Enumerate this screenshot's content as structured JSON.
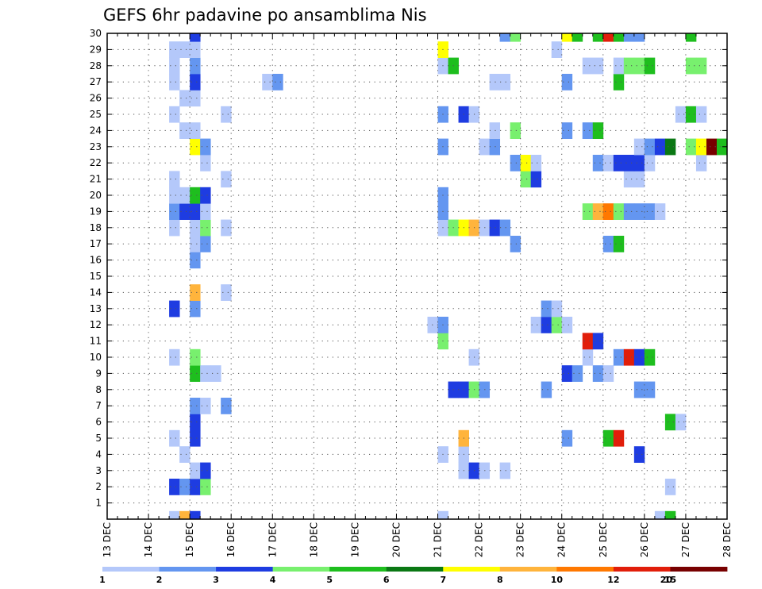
{
  "chart_data": {
    "type": "heatmap",
    "title": "GEFS 6hr padavine po ansamblima Nis",
    "x": {
      "labels": [
        "13 DEC",
        "14 DEC",
        "15 DEC",
        "16 DEC",
        "17 DEC",
        "18 DEC",
        "19 DEC",
        "20 DEC",
        "21 DEC",
        "22 DEC",
        "23 DEC",
        "24 DEC",
        "25 DEC",
        "26 DEC",
        "27 DEC",
        "28 DEC"
      ],
      "range": [
        0,
        60
      ],
      "steps_per_day": 4
    },
    "y": {
      "labels": [
        "1",
        "2",
        "3",
        "4",
        "5",
        "6",
        "7",
        "8",
        "9",
        "10",
        "11",
        "12",
        "13",
        "14",
        "15",
        "16",
        "17",
        "18",
        "19",
        "20",
        "21",
        "22",
        "23",
        "24",
        "25",
        "26",
        "27",
        "28",
        "29",
        "30"
      ],
      "range": [
        0,
        30
      ]
    },
    "grid": true,
    "colorbar": {
      "placement": "bottom",
      "colors": [
        "#b4c8fa",
        "#6496f0",
        "#1e3ce1",
        "#78f06e",
        "#1ebe1e",
        "#0a7814",
        "#ffff00",
        "#ffb43c",
        "#ff7800",
        "#e11e0a",
        "#780000"
      ],
      "labels": [
        "1",
        "2",
        "3",
        "4",
        "5",
        "6",
        "7",
        "8",
        "10",
        "12",
        "15",
        "20"
      ]
    },
    "cells": [
      [
        6,
        0,
        1
      ],
      [
        7,
        0,
        8
      ],
      [
        8,
        0,
        3
      ],
      [
        32,
        0,
        1
      ],
      [
        53,
        0,
        1
      ],
      [
        54,
        0,
        5
      ],
      [
        6,
        2,
        3
      ],
      [
        7,
        2,
        2
      ],
      [
        8,
        2,
        3
      ],
      [
        9,
        2,
        4
      ],
      [
        54,
        2,
        1
      ],
      [
        8,
        3,
        1
      ],
      [
        9,
        3,
        3
      ],
      [
        34,
        3,
        1
      ],
      [
        35,
        3,
        3
      ],
      [
        36,
        3,
        1
      ],
      [
        38,
        3,
        1
      ],
      [
        7,
        4,
        1
      ],
      [
        32,
        4,
        1
      ],
      [
        34,
        4,
        1
      ],
      [
        51,
        4,
        3
      ],
      [
        6,
        5,
        1
      ],
      [
        8,
        5,
        3
      ],
      [
        34,
        5,
        8
      ],
      [
        44,
        5,
        2
      ],
      [
        48,
        5,
        5
      ],
      [
        49,
        5,
        10
      ],
      [
        8,
        6,
        3
      ],
      [
        54,
        6,
        5
      ],
      [
        55,
        6,
        1
      ],
      [
        8,
        7,
        2
      ],
      [
        9,
        7,
        1
      ],
      [
        11,
        7,
        2
      ],
      [
        33,
        8,
        3
      ],
      [
        34,
        8,
        3
      ],
      [
        35,
        8,
        4
      ],
      [
        36,
        8,
        2
      ],
      [
        42,
        8,
        2
      ],
      [
        51,
        8,
        2
      ],
      [
        52,
        8,
        2
      ],
      [
        8,
        9,
        5
      ],
      [
        9,
        9,
        1
      ],
      [
        10,
        9,
        1
      ],
      [
        44,
        9,
        3
      ],
      [
        45,
        9,
        2
      ],
      [
        47,
        9,
        2
      ],
      [
        48,
        9,
        1
      ],
      [
        6,
        10,
        1
      ],
      [
        8,
        10,
        4
      ],
      [
        35,
        10,
        1
      ],
      [
        46,
        10,
        1
      ],
      [
        49,
        10,
        2
      ],
      [
        50,
        10,
        10
      ],
      [
        51,
        10,
        3
      ],
      [
        52,
        10,
        5
      ],
      [
        32,
        11,
        4
      ],
      [
        46,
        11,
        10
      ],
      [
        47,
        11,
        3
      ],
      [
        31,
        12,
        1
      ],
      [
        32,
        12,
        2
      ],
      [
        41,
        12,
        1
      ],
      [
        42,
        12,
        3
      ],
      [
        43,
        12,
        4
      ],
      [
        44,
        12,
        1
      ],
      [
        6,
        13,
        3
      ],
      [
        8,
        13,
        2
      ],
      [
        42,
        13,
        2
      ],
      [
        43,
        13,
        1
      ],
      [
        8,
        14,
        8
      ],
      [
        11,
        14,
        1
      ],
      [
        8,
        16,
        2
      ],
      [
        8,
        17,
        1
      ],
      [
        9,
        17,
        2
      ],
      [
        39,
        17,
        2
      ],
      [
        48,
        17,
        2
      ],
      [
        49,
        17,
        5
      ],
      [
        6,
        18,
        1
      ],
      [
        8,
        18,
        1
      ],
      [
        9,
        18,
        4
      ],
      [
        11,
        18,
        1
      ],
      [
        32,
        18,
        1
      ],
      [
        33,
        18,
        4
      ],
      [
        34,
        18,
        7
      ],
      [
        35,
        18,
        8
      ],
      [
        36,
        18,
        1
      ],
      [
        37,
        18,
        3
      ],
      [
        38,
        18,
        2
      ],
      [
        6,
        19,
        2
      ],
      [
        7,
        19,
        3
      ],
      [
        8,
        19,
        3
      ],
      [
        9,
        19,
        1
      ],
      [
        32,
        19,
        2
      ],
      [
        46,
        19,
        4
      ],
      [
        47,
        19,
        8
      ],
      [
        48,
        19,
        9
      ],
      [
        49,
        19,
        4
      ],
      [
        50,
        19,
        2
      ],
      [
        51,
        19,
        2
      ],
      [
        52,
        19,
        2
      ],
      [
        53,
        19,
        1
      ],
      [
        6,
        20,
        1
      ],
      [
        7,
        20,
        1
      ],
      [
        8,
        20,
        5
      ],
      [
        9,
        20,
        3
      ],
      [
        32,
        20,
        2
      ],
      [
        6,
        21,
        1
      ],
      [
        11,
        21,
        1
      ],
      [
        40,
        21,
        4
      ],
      [
        41,
        21,
        3
      ],
      [
        50,
        21,
        1
      ],
      [
        51,
        21,
        1
      ],
      [
        9,
        22,
        1
      ],
      [
        39,
        22,
        2
      ],
      [
        40,
        22,
        7
      ],
      [
        41,
        22,
        1
      ],
      [
        47,
        22,
        2
      ],
      [
        48,
        22,
        1
      ],
      [
        49,
        22,
        3
      ],
      [
        50,
        22,
        3
      ],
      [
        51,
        22,
        3
      ],
      [
        52,
        22,
        1
      ],
      [
        57,
        22,
        1
      ],
      [
        8,
        23,
        7
      ],
      [
        9,
        23,
        2
      ],
      [
        32,
        23,
        2
      ],
      [
        36,
        23,
        1
      ],
      [
        37,
        23,
        2
      ],
      [
        51,
        23,
        1
      ],
      [
        52,
        23,
        2
      ],
      [
        53,
        23,
        3
      ],
      [
        54,
        23,
        6
      ],
      [
        56,
        23,
        4
      ],
      [
        57,
        23,
        7
      ],
      [
        58,
        23,
        11
      ],
      [
        59,
        23,
        5
      ],
      [
        7,
        24,
        1
      ],
      [
        8,
        24,
        1
      ],
      [
        37,
        24,
        1
      ],
      [
        39,
        24,
        4
      ],
      [
        44,
        24,
        2
      ],
      [
        46,
        24,
        2
      ],
      [
        47,
        24,
        5
      ],
      [
        6,
        25,
        1
      ],
      [
        11,
        25,
        1
      ],
      [
        32,
        25,
        2
      ],
      [
        34,
        25,
        3
      ],
      [
        35,
        25,
        1
      ],
      [
        55,
        25,
        1
      ],
      [
        56,
        25,
        5
      ],
      [
        57,
        25,
        1
      ],
      [
        7,
        26,
        1
      ],
      [
        8,
        26,
        1
      ],
      [
        6,
        27,
        1
      ],
      [
        8,
        27,
        3
      ],
      [
        15,
        27,
        1
      ],
      [
        16,
        27,
        2
      ],
      [
        37,
        27,
        1
      ],
      [
        38,
        27,
        1
      ],
      [
        44,
        27,
        2
      ],
      [
        49,
        27,
        5
      ],
      [
        6,
        28,
        1
      ],
      [
        8,
        28,
        2
      ],
      [
        32,
        28,
        1
      ],
      [
        33,
        28,
        5
      ],
      [
        46,
        28,
        1
      ],
      [
        47,
        28,
        1
      ],
      [
        49,
        28,
        1
      ],
      [
        50,
        28,
        4
      ],
      [
        51,
        28,
        4
      ],
      [
        52,
        28,
        5
      ],
      [
        56,
        28,
        4
      ],
      [
        57,
        28,
        4
      ],
      [
        6,
        29,
        1
      ],
      [
        7,
        29,
        1
      ],
      [
        8,
        29,
        1
      ],
      [
        32,
        29,
        7
      ],
      [
        43,
        29,
        1
      ],
      [
        8,
        30,
        3
      ],
      [
        38,
        30,
        2
      ],
      [
        39,
        30,
        4
      ],
      [
        44,
        30,
        7
      ],
      [
        45,
        30,
        5
      ],
      [
        47,
        30,
        5
      ],
      [
        48,
        30,
        10
      ],
      [
        49,
        30,
        5
      ],
      [
        50,
        30,
        2
      ],
      [
        51,
        30,
        2
      ],
      [
        56,
        30,
        5
      ]
    ]
  }
}
